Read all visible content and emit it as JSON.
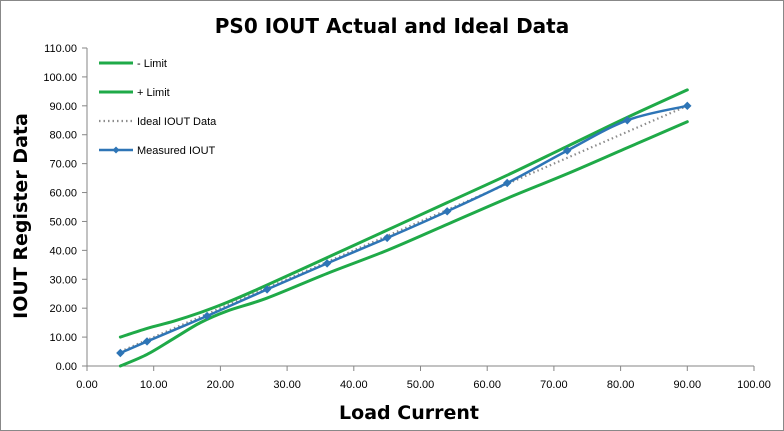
{
  "chart_data": {
    "type": "line",
    "title": "PS0 IOUT Actual and Ideal Data",
    "xlabel": "Load Current",
    "ylabel": "IOUT Register Data",
    "xlim": [
      0,
      100
    ],
    "ylim": [
      0,
      110
    ],
    "x_ticks": [
      "0.00",
      "10.00",
      "20.00",
      "30.00",
      "40.00",
      "50.00",
      "60.00",
      "70.00",
      "80.00",
      "90.00",
      "100.00"
    ],
    "y_ticks": [
      "0.00",
      "10.00",
      "20.00",
      "30.00",
      "40.00",
      "50.00",
      "60.00",
      "70.00",
      "80.00",
      "90.00",
      "100.00",
      "110.00"
    ],
    "grid": "none",
    "legend_position": "top-left",
    "series": [
      {
        "name": "- Limit",
        "color": "#1faa48",
        "style": "solid",
        "marker": "none",
        "x": [
          5,
          9,
          13,
          17,
          21,
          27,
          36,
          45,
          54,
          63,
          72,
          81,
          90
        ],
        "y": [
          0,
          4,
          9.5,
          15,
          19,
          23.5,
          32,
          40,
          49,
          58,
          66.5,
          75.5,
          84.5
        ]
      },
      {
        "name": "+ Limit",
        "color": "#1faa48",
        "style": "solid",
        "marker": "none",
        "x": [
          5,
          9,
          13,
          17,
          21,
          27,
          36,
          45,
          54,
          63,
          72,
          81,
          90
        ],
        "y": [
          10,
          13,
          15.5,
          18.5,
          22,
          28,
          37.5,
          47,
          56.5,
          66,
          76,
          86,
          95.5
        ]
      },
      {
        "name": "Ideal IOUT Data",
        "color": "#8c8c8c",
        "style": "dotted",
        "marker": "none",
        "x": [
          5,
          90
        ],
        "y": [
          5,
          90
        ]
      },
      {
        "name": "Measured IOUT",
        "color": "#2e75b6",
        "style": "solid",
        "marker": "diamond",
        "x": [
          5,
          9,
          18,
          27,
          36,
          45,
          54,
          63,
          72,
          81,
          90
        ],
        "y": [
          4.5,
          8.5,
          17.3,
          26.5,
          35.5,
          44.3,
          53.5,
          63.3,
          74.5,
          85,
          90
        ]
      }
    ]
  }
}
